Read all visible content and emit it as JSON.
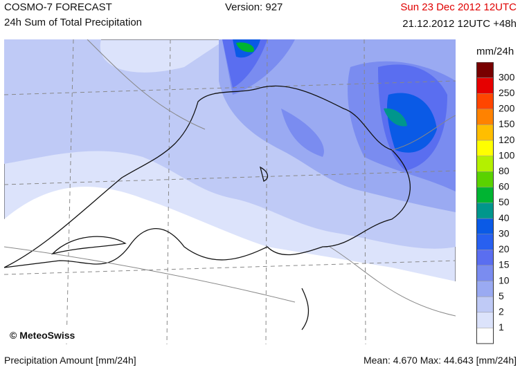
{
  "header": {
    "title": "COSMO-7 FORECAST",
    "subtitle": "24h Sum of Total Precipitation",
    "version": "Version: 927",
    "valid_time": "Sun 23 Dec 2012 12UTC",
    "run_time": "21.12.2012 12UTC +48h"
  },
  "legend": {
    "unit": "mm/24h",
    "levels": [
      300,
      250,
      200,
      150,
      120,
      100,
      80,
      60,
      50,
      40,
      30,
      20,
      15,
      10,
      5,
      2,
      1
    ],
    "colors": [
      "#780000",
      "#e60000",
      "#ff4600",
      "#ff8200",
      "#ffbe00",
      "#ffff00",
      "#b4f000",
      "#5ad200",
      "#00b432",
      "#00968c",
      "#0a5ae6",
      "#2860f0",
      "#5a6ef0",
      "#7a8cf0",
      "#9aaaf2",
      "#bfcaf6",
      "#dce3fb",
      "#ffffff"
    ]
  },
  "map": {
    "credit": "© MeteoSwiss"
  },
  "footer": {
    "left": "Precipitation Amount [mm/24h]",
    "stats": "Mean:  4.670 Max:  44.643 [mm/24h]"
  }
}
